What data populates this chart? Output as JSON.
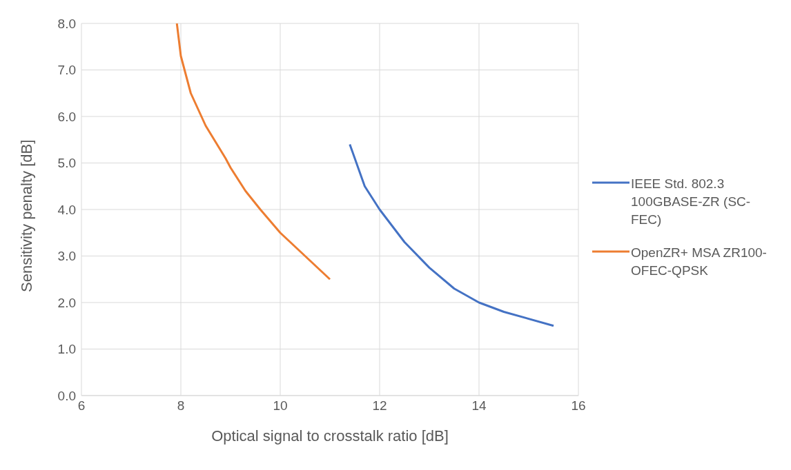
{
  "chart_data": {
    "type": "line",
    "xlabel": "Optical signal to crosstalk ratio [dB]",
    "ylabel": "Sensitivity penalty [dB]",
    "xlim": [
      6,
      16
    ],
    "xticks": [
      6,
      8,
      10,
      12,
      14,
      16
    ],
    "ylim": [
      0,
      8
    ],
    "yticks": [
      {
        "value": 0,
        "label": "0.0"
      },
      {
        "value": 1,
        "label": "1.0"
      },
      {
        "value": 2,
        "label": "2.0"
      },
      {
        "value": 3,
        "label": "3.0"
      },
      {
        "value": 4,
        "label": "4.0"
      },
      {
        "value": 5,
        "label": "5.0"
      },
      {
        "value": 6,
        "label": "6.0"
      },
      {
        "value": 7,
        "label": "7.0"
      },
      {
        "value": 8,
        "label": "8.0"
      }
    ],
    "grid": true,
    "legend": "right",
    "marker": "none",
    "line_style": "solid",
    "series": [
      {
        "name": "IEEE Std. 802.3 100GBASE-ZR (SC-FEC)",
        "color": "#4472c4",
        "x": [
          11.4,
          11.7,
          12.0,
          12.5,
          13.0,
          13.5,
          14.0,
          14.5,
          15.5
        ],
        "values": [
          5.4,
          4.5,
          4.0,
          3.3,
          2.75,
          2.3,
          2.0,
          1.8,
          1.5
        ]
      },
      {
        "name": "OpenZR+ MSA ZR100-OFEC-QPSK",
        "color": "#ed7d31",
        "x": [
          7.92,
          8.0,
          8.2,
          8.5,
          8.9,
          9.0,
          9.3,
          9.6,
          10.0,
          10.4,
          11.0
        ],
        "values": [
          8.0,
          7.3,
          6.5,
          5.8,
          5.1,
          4.9,
          4.4,
          4.0,
          3.5,
          3.1,
          2.5
        ]
      }
    ]
  }
}
